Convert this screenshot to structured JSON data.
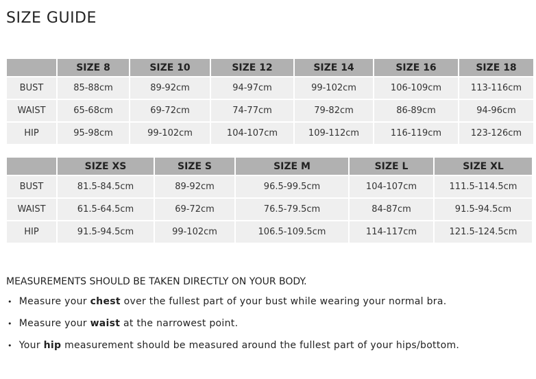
{
  "title": "SIZE GUIDE",
  "table1": {
    "headers": [
      "",
      "SIZE 8",
      "SIZE 10",
      "SIZE 12",
      "SIZE 14",
      "SIZE 16",
      "SIZE 18"
    ],
    "rows": [
      [
        "BUST",
        "85-88cm",
        "89-92cm",
        "94-97cm",
        "99-102cm",
        "106-109cm",
        "113-116cm"
      ],
      [
        "WAIST",
        "65-68cm",
        "69-72cm",
        "74-77cm",
        "79-82cm",
        "86-89cm",
        "94-96cm"
      ],
      [
        "HIP",
        "95-98cm",
        "99-102cm",
        "104-107cm",
        "109-112cm",
        "116-119cm",
        "123-126cm"
      ]
    ]
  },
  "table2": {
    "headers": [
      "",
      "SIZE XS",
      "SIZE S",
      "SIZE M",
      "SIZE L",
      "SIZE XL"
    ],
    "rows": [
      [
        "BUST",
        "81.5-84.5cm",
        "89-92cm",
        "96.5-99.5cm",
        "104-107cm",
        "111.5-114.5cm"
      ],
      [
        "WAIST",
        "61.5-64.5cm",
        "69-72cm",
        "76.5-79.5cm",
        "84-87cm",
        "91.5-94.5cm"
      ],
      [
        "HIP",
        "91.5-94.5cm",
        "99-102cm",
        "106.5-109.5cm",
        "114-117cm",
        "121.5-124.5cm"
      ]
    ]
  },
  "note": "MEASUREMENTS SHOULD BE TAKEN DIRECTLY ON YOUR BODY.",
  "bullets": [
    {
      "before": "Measure your ",
      "bold": "chest",
      "after": " over the fullest part of your bust while wearing your normal bra."
    },
    {
      "before": "Measure your ",
      "bold": "waist",
      "after": " at the narrowest point."
    },
    {
      "before": "Your ",
      "bold": "hip",
      "after": " measurement should be measured around the fullest part of your hips/bottom."
    }
  ]
}
